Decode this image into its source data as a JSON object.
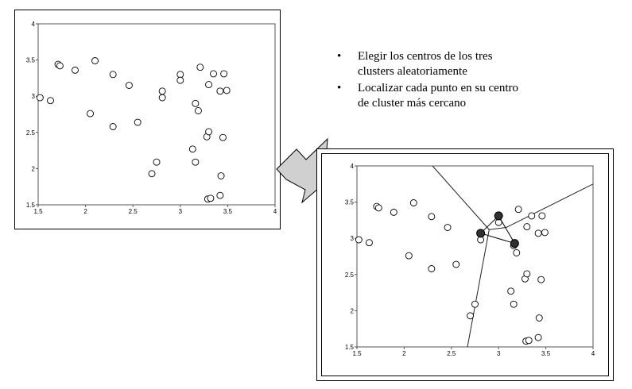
{
  "bullets": [
    "Elegir los centros de los tres\nclusters aleatoriamente",
    "Localizar cada punto en su centro\nde cluster  más cercano"
  ],
  "bullet_symbol": "•",
  "chart_data": [
    {
      "type": "scatter",
      "xlim": [
        1.5,
        4
      ],
      "ylim": [
        1.5,
        4
      ],
      "x_ticks": [
        "1.5",
        "2",
        "2.5",
        "3",
        "3.5",
        "4"
      ],
      "y_ticks": [
        "1.5",
        "2",
        "2.5",
        "3",
        "3.5",
        "4"
      ],
      "points": [
        [
          1.52,
          2.98
        ],
        [
          1.63,
          2.94
        ],
        [
          1.71,
          3.44
        ],
        [
          1.73,
          3.42
        ],
        [
          1.89,
          3.36
        ],
        [
          2.05,
          2.76
        ],
        [
          2.1,
          3.49
        ],
        [
          2.29,
          3.3
        ],
        [
          2.29,
          2.58
        ],
        [
          2.46,
          3.15
        ],
        [
          2.55,
          2.64
        ],
        [
          2.7,
          1.93
        ],
        [
          2.75,
          2.09
        ],
        [
          2.81,
          3.07
        ],
        [
          2.81,
          2.98
        ],
        [
          3.0,
          3.3
        ],
        [
          3.0,
          3.22
        ],
        [
          3.13,
          2.27
        ],
        [
          3.16,
          2.09
        ],
        [
          3.16,
          2.9
        ],
        [
          3.19,
          2.8
        ],
        [
          3.21,
          3.4
        ],
        [
          3.28,
          2.44
        ],
        [
          3.29,
          1.58
        ],
        [
          3.3,
          2.51
        ],
        [
          3.3,
          3.16
        ],
        [
          3.32,
          1.59
        ],
        [
          3.35,
          3.31
        ],
        [
          3.42,
          3.07
        ],
        [
          3.42,
          1.63
        ],
        [
          3.43,
          1.9
        ],
        [
          3.45,
          2.43
        ],
        [
          3.46,
          3.31
        ],
        [
          3.49,
          3.08
        ]
      ],
      "grid": false,
      "legend": "none"
    },
    {
      "type": "scatter",
      "xlim": [
        1.5,
        4
      ],
      "ylim": [
        1.5,
        4
      ],
      "x_ticks": [
        "1.5",
        "2",
        "2.5",
        "3",
        "3.5",
        "4"
      ],
      "y_ticks": [
        "1.5",
        "2",
        "2.5",
        "3",
        "3.5",
        "4"
      ],
      "points": [
        [
          1.52,
          2.98
        ],
        [
          1.63,
          2.94
        ],
        [
          1.71,
          3.44
        ],
        [
          1.73,
          3.42
        ],
        [
          1.89,
          3.36
        ],
        [
          2.05,
          2.76
        ],
        [
          2.1,
          3.49
        ],
        [
          2.29,
          3.3
        ],
        [
          2.29,
          2.58
        ],
        [
          2.46,
          3.15
        ],
        [
          2.55,
          2.64
        ],
        [
          2.7,
          1.93
        ],
        [
          2.75,
          2.09
        ],
        [
          2.81,
          3.07
        ],
        [
          2.81,
          2.98
        ],
        [
          3.0,
          3.3
        ],
        [
          3.0,
          3.22
        ],
        [
          3.13,
          2.27
        ],
        [
          3.16,
          2.09
        ],
        [
          3.16,
          2.9
        ],
        [
          3.19,
          2.8
        ],
        [
          3.21,
          3.4
        ],
        [
          3.28,
          2.44
        ],
        [
          3.29,
          1.58
        ],
        [
          3.3,
          2.51
        ],
        [
          3.3,
          3.16
        ],
        [
          3.32,
          1.59
        ],
        [
          3.35,
          3.31
        ],
        [
          3.42,
          3.07
        ],
        [
          3.42,
          1.63
        ],
        [
          3.43,
          1.9
        ],
        [
          3.45,
          2.43
        ],
        [
          3.46,
          3.31
        ],
        [
          3.49,
          3.08
        ]
      ],
      "centers": [
        [
          2.81,
          3.07
        ],
        [
          3.0,
          3.31
        ],
        [
          3.17,
          2.93
        ]
      ],
      "boundaries": [
        [
          [
            2.3,
            4.0
          ],
          [
            2.9,
            3.12
          ]
        ],
        [
          [
            2.9,
            3.12
          ],
          [
            2.67,
            1.5
          ]
        ],
        [
          [
            2.9,
            3.12
          ],
          [
            3.08,
            3.15
          ]
        ],
        [
          [
            3.08,
            3.15
          ],
          [
            4.0,
            3.75
          ]
        ]
      ],
      "grid": false,
      "legend": "none"
    }
  ],
  "colors": {
    "arrow_fill": "#d0d0d0",
    "center_fill": "#303030"
  }
}
